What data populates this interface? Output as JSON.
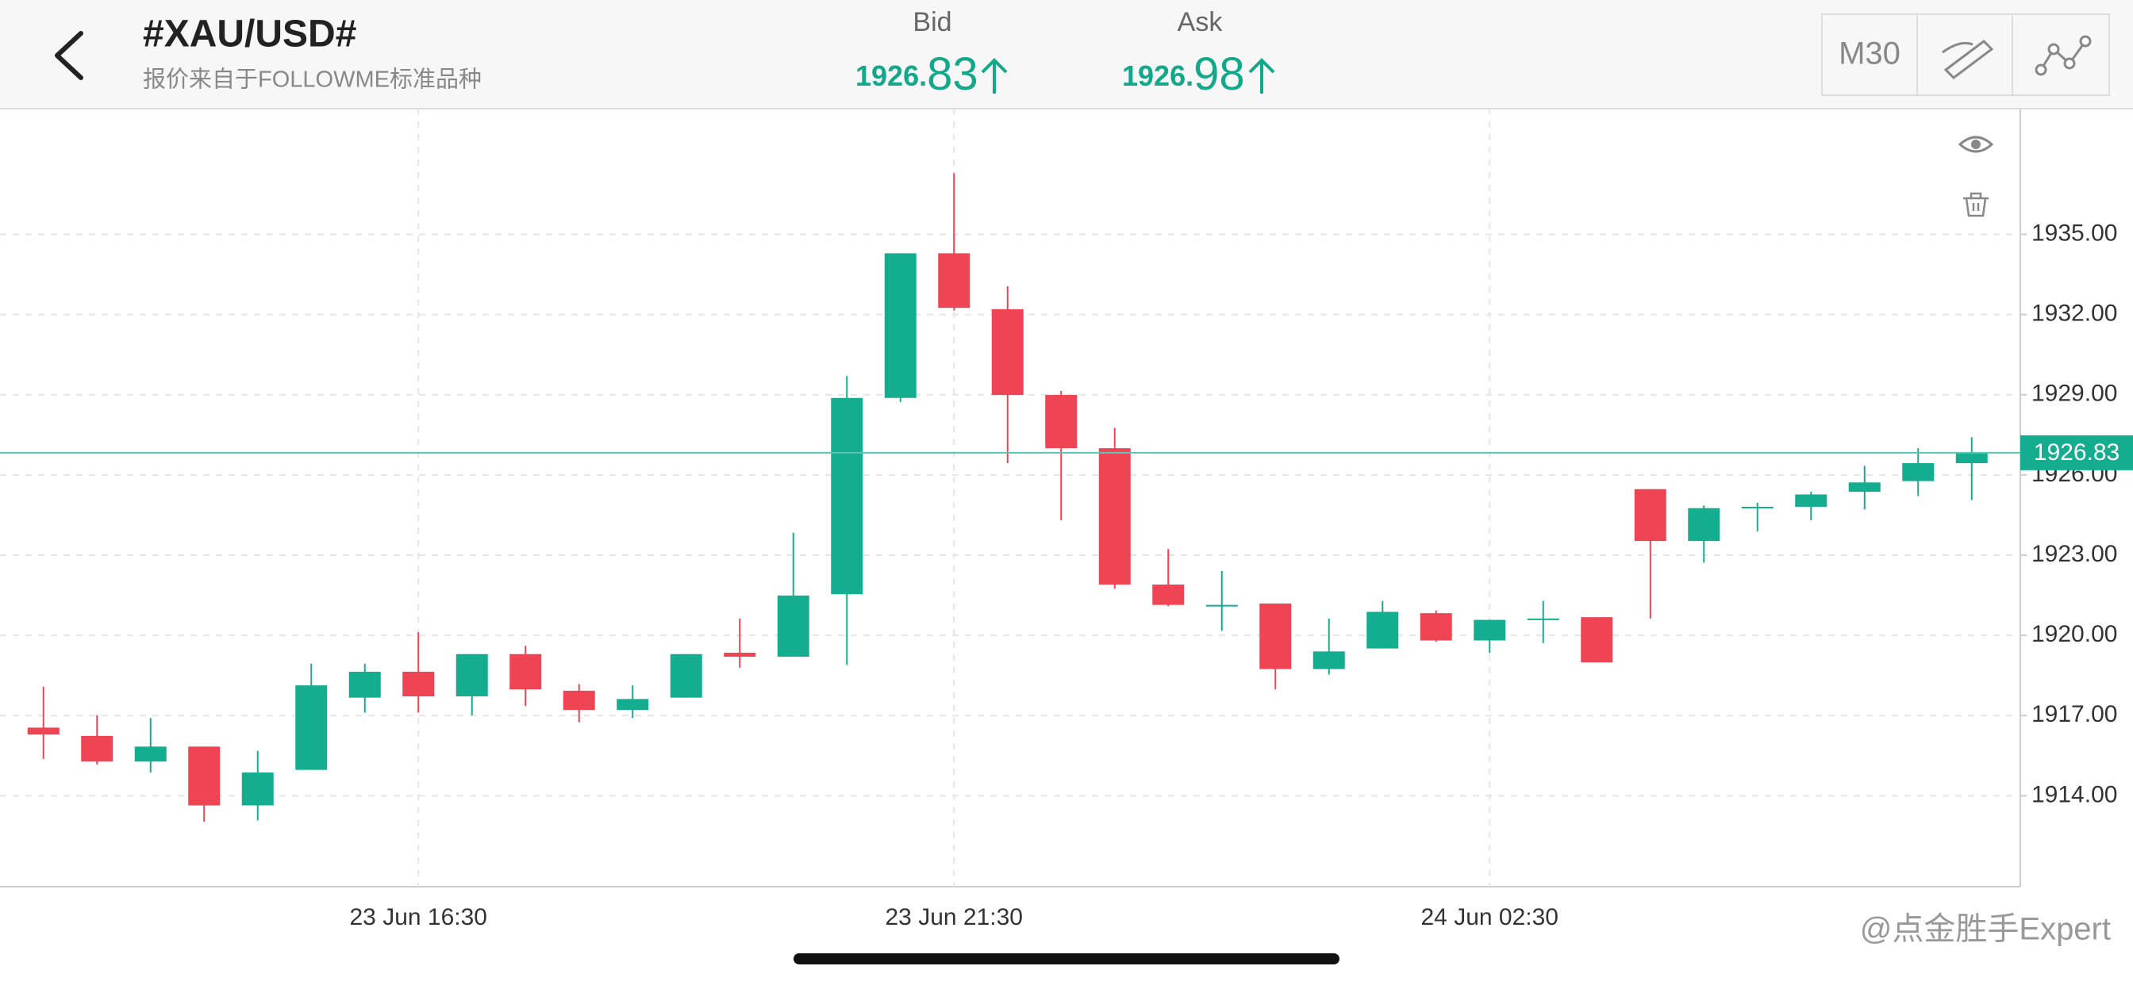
{
  "header": {
    "title": "#XAU/USD#",
    "subtitle": "报价来自于FOLLOWME标准品种",
    "bid": {
      "label": "Bid",
      "value": "1926.83"
    },
    "ask": {
      "label": "Ask",
      "value": "1926.98"
    },
    "timeframe": "M30"
  },
  "chart_data": {
    "type": "candlestick",
    "categories": [
      null,
      null,
      null,
      null,
      null,
      null,
      null,
      "23 Jun 16:30",
      null,
      null,
      null,
      null,
      null,
      null,
      null,
      null,
      null,
      "23 Jun 21:30",
      null,
      null,
      null,
      null,
      null,
      null,
      null,
      null,
      null,
      "24 Jun 02:30",
      null,
      null,
      null,
      null,
      null,
      null,
      null,
      null,
      null
    ],
    "open": [
      1916.55,
      1916.24,
      1915.28,
      1915.84,
      1913.64,
      1914.97,
      1917.67,
      1918.64,
      1917.72,
      1919.3,
      1917.93,
      1917.21,
      1917.67,
      1919.35,
      1919.2,
      1921.54,
      1928.88,
      1934.29,
      1932.2,
      1928.99,
      1927.0,
      1921.9,
      1921.14,
      1921.19,
      1918.74,
      1919.51,
      1920.83,
      1919.81,
      1920.63,
      1920.68,
      1925.47,
      1923.53,
      1924.79,
      1924.81,
      1925.37,
      1925.77,
      1926.44
    ],
    "high": [
      1918.08,
      1917.01,
      1916.91,
      1915.84,
      1915.68,
      1918.94,
      1918.94,
      1920.12,
      1919.3,
      1919.61,
      1918.18,
      1918.13,
      1919.3,
      1920.63,
      1923.84,
      1929.7,
      1934.29,
      1937.29,
      1933.06,
      1929.14,
      1927.76,
      1923.23,
      1922.41,
      1921.19,
      1920.63,
      1921.29,
      1920.93,
      1920.58,
      1921.29,
      1920.68,
      1925.47,
      1924.86,
      1924.96,
      1925.37,
      1926.34,
      1927.0,
      1927.41
    ],
    "low": [
      1915.38,
      1915.17,
      1914.87,
      1913.03,
      1913.08,
      1914.97,
      1917.11,
      1917.11,
      1917.01,
      1917.36,
      1916.75,
      1916.91,
      1917.67,
      1918.79,
      1919.2,
      1918.89,
      1928.73,
      1932.15,
      1926.44,
      1924.3,
      1921.75,
      1921.09,
      1920.17,
      1917.98,
      1918.54,
      1919.51,
      1919.76,
      1919.35,
      1919.71,
      1918.99,
      1920.63,
      1922.72,
      1923.89,
      1924.3,
      1924.71,
      1925.21,
      1925.06
    ],
    "close": [
      1916.29,
      1915.28,
      1915.84,
      1913.64,
      1914.87,
      1918.13,
      1918.64,
      1917.72,
      1919.3,
      1917.98,
      1917.21,
      1917.62,
      1919.3,
      1919.2,
      1921.49,
      1928.88,
      1934.29,
      1932.25,
      1928.99,
      1927.0,
      1921.9,
      1921.14,
      1921.14,
      1918.74,
      1919.4,
      1920.88,
      1919.81,
      1920.58,
      1920.63,
      1918.99,
      1923.53,
      1924.76,
      1924.81,
      1925.27,
      1925.72,
      1926.44,
      1926.83
    ],
    "up_color": "#14ad8f",
    "down_color": "#ef4454",
    "ylim": [
      1910.6,
      1939.7
    ],
    "yticks": [
      {
        "value": 1914,
        "label": "1914.00"
      },
      {
        "value": 1917,
        "label": "1917.00"
      },
      {
        "value": 1920,
        "label": "1920.00"
      },
      {
        "value": 1923,
        "label": "1923.00"
      },
      {
        "value": 1926,
        "label": "1926.00"
      },
      {
        "value": 1929,
        "label": "1929.00"
      },
      {
        "value": 1932,
        "label": "1932.00"
      },
      {
        "value": 1935,
        "label": "1935.00"
      }
    ],
    "last_price": 1926.83,
    "grid": true
  },
  "watermark": "@点金胜手Expert"
}
